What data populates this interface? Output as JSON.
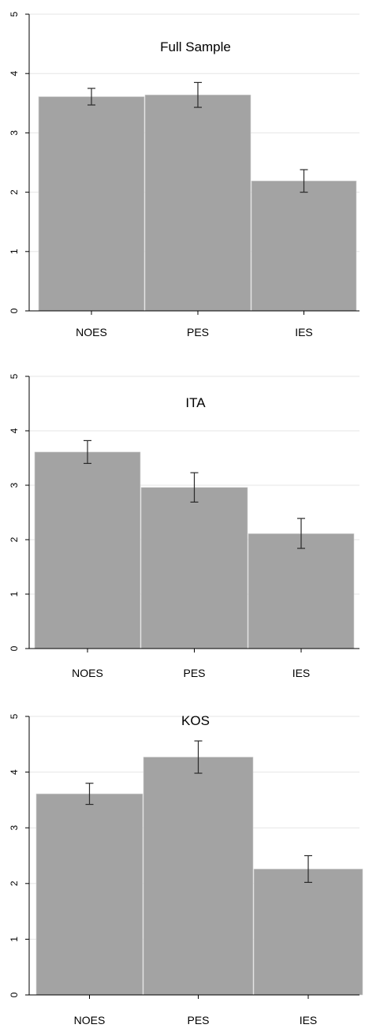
{
  "chart_data": [
    {
      "type": "bar",
      "title": "Full Sample",
      "categories": [
        "NOES",
        "PES",
        "IES"
      ],
      "values": [
        3.61,
        3.64,
        2.19
      ],
      "error_low": [
        3.47,
        3.43,
        2.0
      ],
      "error_high": [
        3.75,
        3.85,
        2.38
      ],
      "ylim": [
        0,
        5
      ],
      "yticks": [
        "0",
        "1",
        "2",
        "3",
        "4",
        "5"
      ],
      "grid": true,
      "bar_color": "#a3a3a3"
    },
    {
      "type": "bar",
      "title": "ITA",
      "categories": [
        "NOES",
        "PES",
        "IES"
      ],
      "values": [
        3.61,
        2.96,
        2.11
      ],
      "error_low": [
        3.4,
        2.69,
        1.84
      ],
      "error_high": [
        3.82,
        3.23,
        2.39
      ],
      "ylim": [
        0,
        5
      ],
      "yticks": [
        "0",
        "1",
        "2",
        "3",
        "4",
        "5"
      ],
      "grid": true,
      "bar_color": "#a3a3a3"
    },
    {
      "type": "bar",
      "title": "KOS",
      "categories": [
        "NOES",
        "PES",
        "IES"
      ],
      "values": [
        3.61,
        4.27,
        2.26
      ],
      "error_low": [
        3.42,
        3.98,
        2.02
      ],
      "error_high": [
        3.8,
        4.56,
        2.5
      ],
      "ylim": [
        0,
        5
      ],
      "yticks": [
        "0",
        "1",
        "2",
        "3",
        "4",
        "5"
      ],
      "grid": true,
      "bar_color": "#a3a3a3"
    }
  ]
}
